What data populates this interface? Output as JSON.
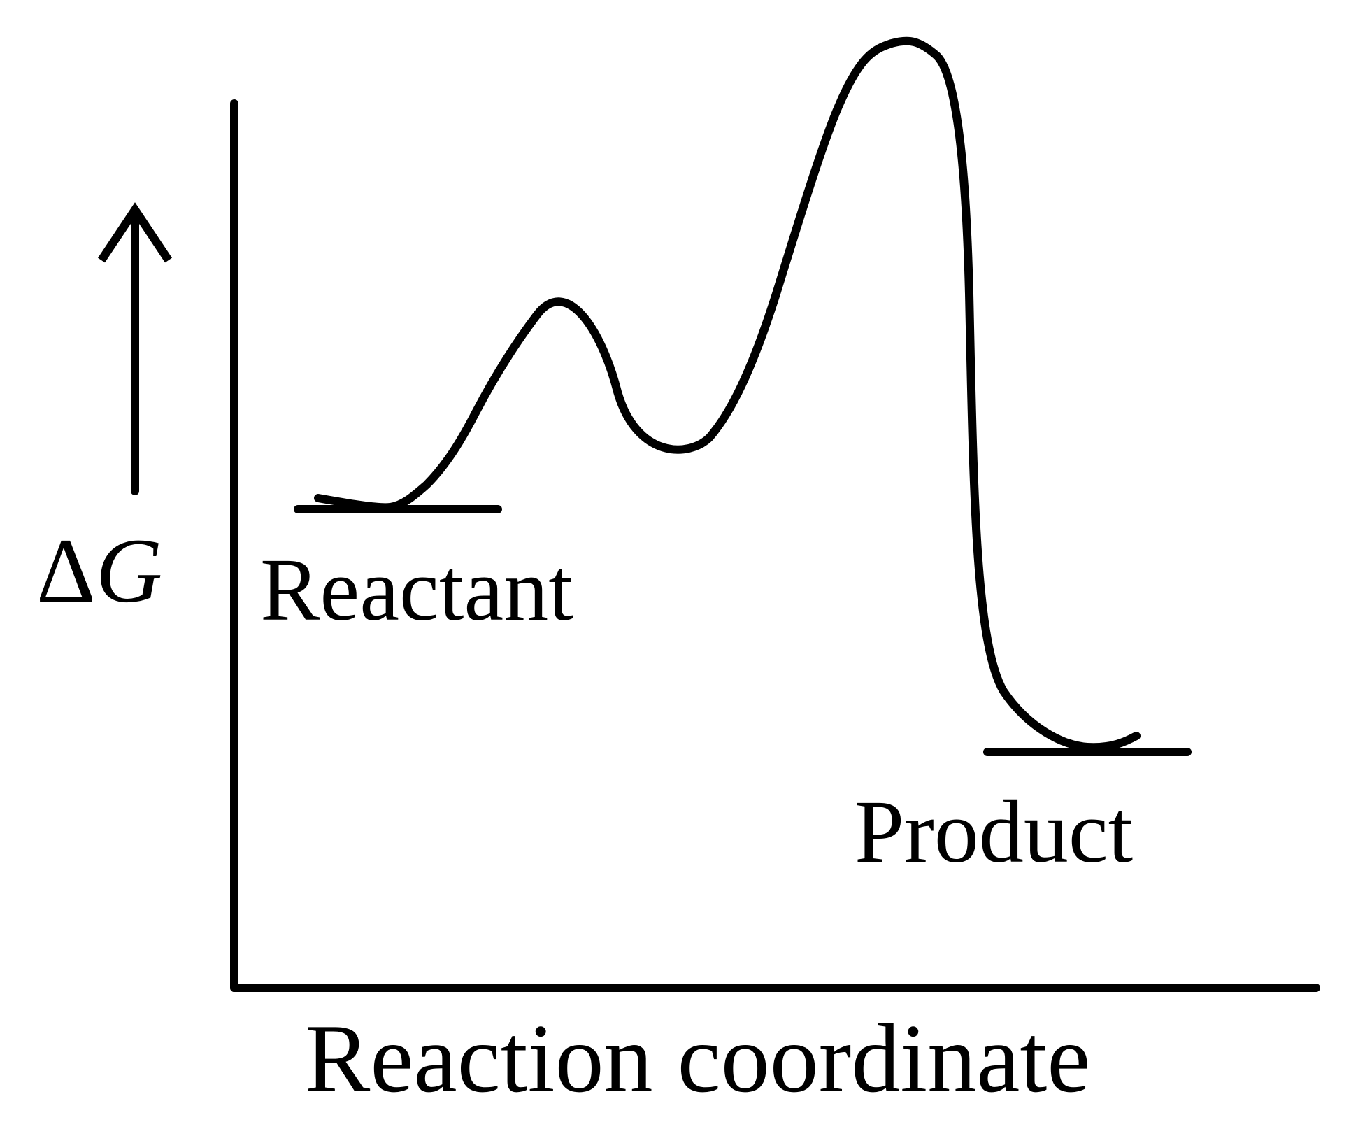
{
  "diagram": {
    "type": "free-energy reaction profile",
    "line_color": "#000000",
    "background_color": "#ffffff",
    "y_axis_label": "ΔG",
    "y_axis_label_delta": "Δ",
    "y_axis_label_symbol": "G",
    "x_axis_label": "Reaction coordinate",
    "states": {
      "reactant": "Reactant",
      "product": "Product"
    },
    "profile_features": [
      "reactant",
      "first barrier",
      "intermediate",
      "second barrier (highest)",
      "product"
    ]
  }
}
